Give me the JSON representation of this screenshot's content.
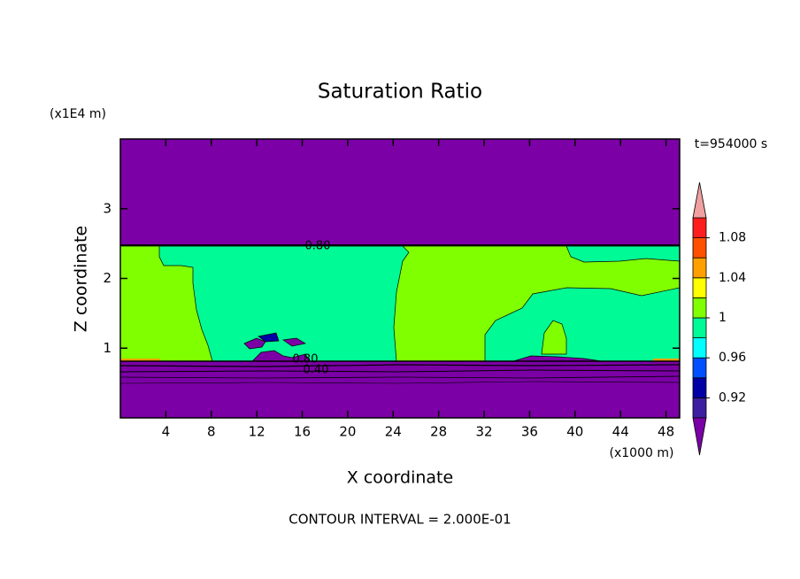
{
  "chart_data": {
    "type": "contour",
    "title": "Saturation Ratio",
    "x_label": "X coordinate",
    "y_label": "Z coordinate",
    "x_unit": "(x1000 m)",
    "y_unit": "(x1E4 m)",
    "time_label": "t=954000 s",
    "footer": "CONTOUR INTERVAL = 2.000E-01",
    "xlim": [
      0,
      49.2
    ],
    "xticks": [
      4,
      8,
      12,
      16,
      20,
      24,
      28,
      32,
      36,
      40,
      44,
      48
    ],
    "ylim": [
      0,
      4
    ],
    "yticks": [
      1,
      2,
      3
    ],
    "contour_labels": [
      "0.80",
      "0.80",
      "0.40"
    ],
    "colorbar": {
      "clim": [
        0.9,
        1.1
      ],
      "ticks": [
        0.92,
        0.96,
        1,
        1.04,
        1.08
      ],
      "colors": [
        "#7b00a5",
        "#3c1ea0",
        "#0000a5",
        "#0050ff",
        "#00ffff",
        "#00fa96",
        "#80ff00",
        "#ffff00",
        "#ffa000",
        "#ff5000",
        "#ff1e1e",
        "#f0a0a0"
      ]
    }
  }
}
